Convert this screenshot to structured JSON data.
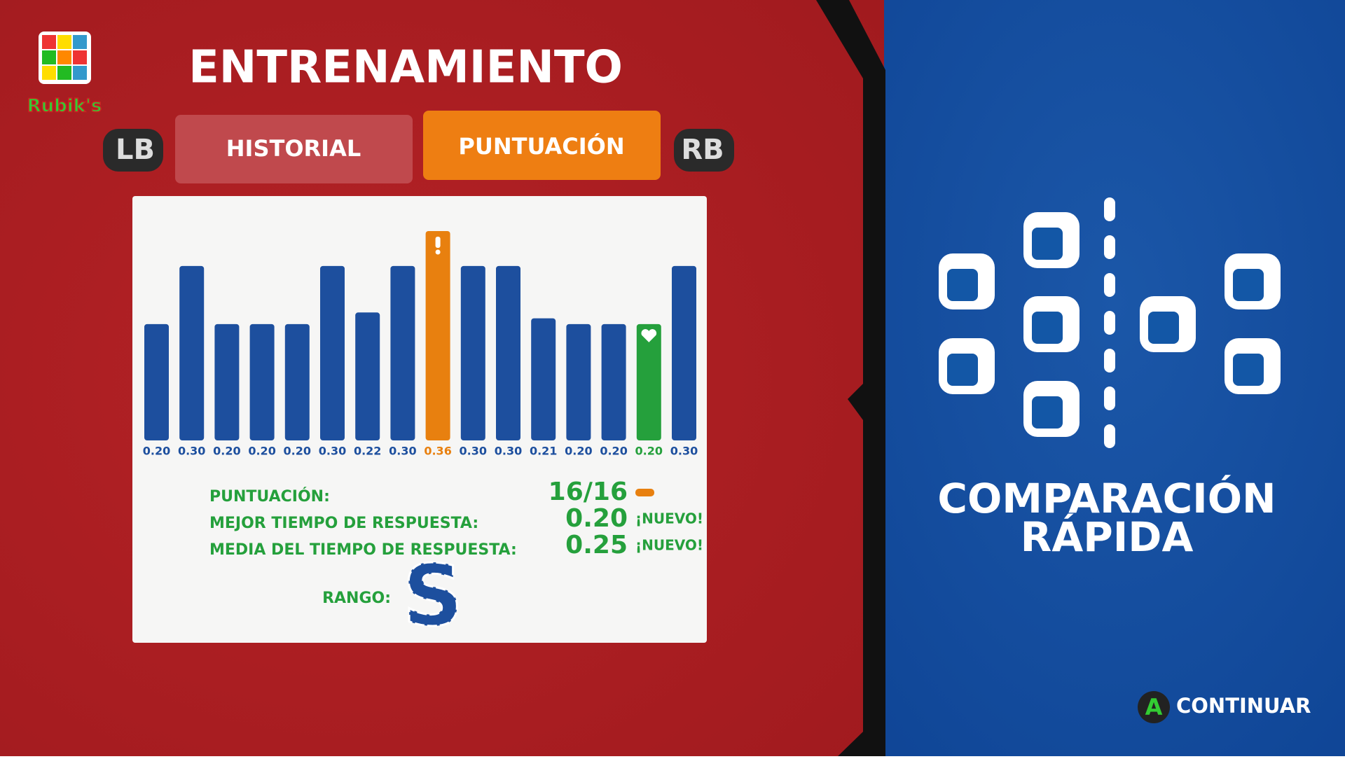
{
  "header": {
    "logo": "Rubik's",
    "title": "ENTRENAMIENTO"
  },
  "tabs": {
    "left_button": "LB",
    "items": [
      "HISTORIAL",
      "PUNTUACIÓN"
    ],
    "right_button": "RB"
  },
  "chart_data": {
    "type": "bar",
    "values": [
      0.2,
      0.3,
      0.2,
      0.2,
      0.2,
      0.3,
      0.22,
      0.3,
      0.36,
      0.3,
      0.3,
      0.21,
      0.2,
      0.2,
      0.2,
      0.3
    ],
    "value_labels": [
      "0.20",
      "0.30",
      "0.20",
      "0.20",
      "0.20",
      "0.30",
      "0.22",
      "0.30",
      "0.36",
      "0.30",
      "0.30",
      "0.21",
      "0.20",
      "0.20",
      "0.20",
      "0.30"
    ],
    "colors": [
      "#1d4f9e",
      "#1d4f9e",
      "#1d4f9e",
      "#1d4f9e",
      "#1d4f9e",
      "#1d4f9e",
      "#1d4f9e",
      "#1d4f9e",
      "#e8800f",
      "#1d4f9e",
      "#1d4f9e",
      "#1d4f9e",
      "#1d4f9e",
      "#1d4f9e",
      "#25a03c",
      "#1d4f9e"
    ]
  },
  "stats": {
    "rows": [
      {
        "label": "PUNTUACIÓN:",
        "value": "16/16"
      },
      {
        "label": "MEJOR TIEMPO DE RESPUESTA:",
        "value": "0.20",
        "badge": "¡NUEVO!"
      },
      {
        "label": "MEDIA DEL TIEMPO DE RESPUESTA:",
        "value": "0.25",
        "badge": "¡NUEVO!"
      }
    ],
    "rank_label": "RANGO:",
    "rank": "S"
  },
  "mode": {
    "title_line1": "COMPARACIÓN",
    "title_line2": "RÁPIDA"
  },
  "footer": {
    "button": "A",
    "action": "CONTINUAR"
  }
}
